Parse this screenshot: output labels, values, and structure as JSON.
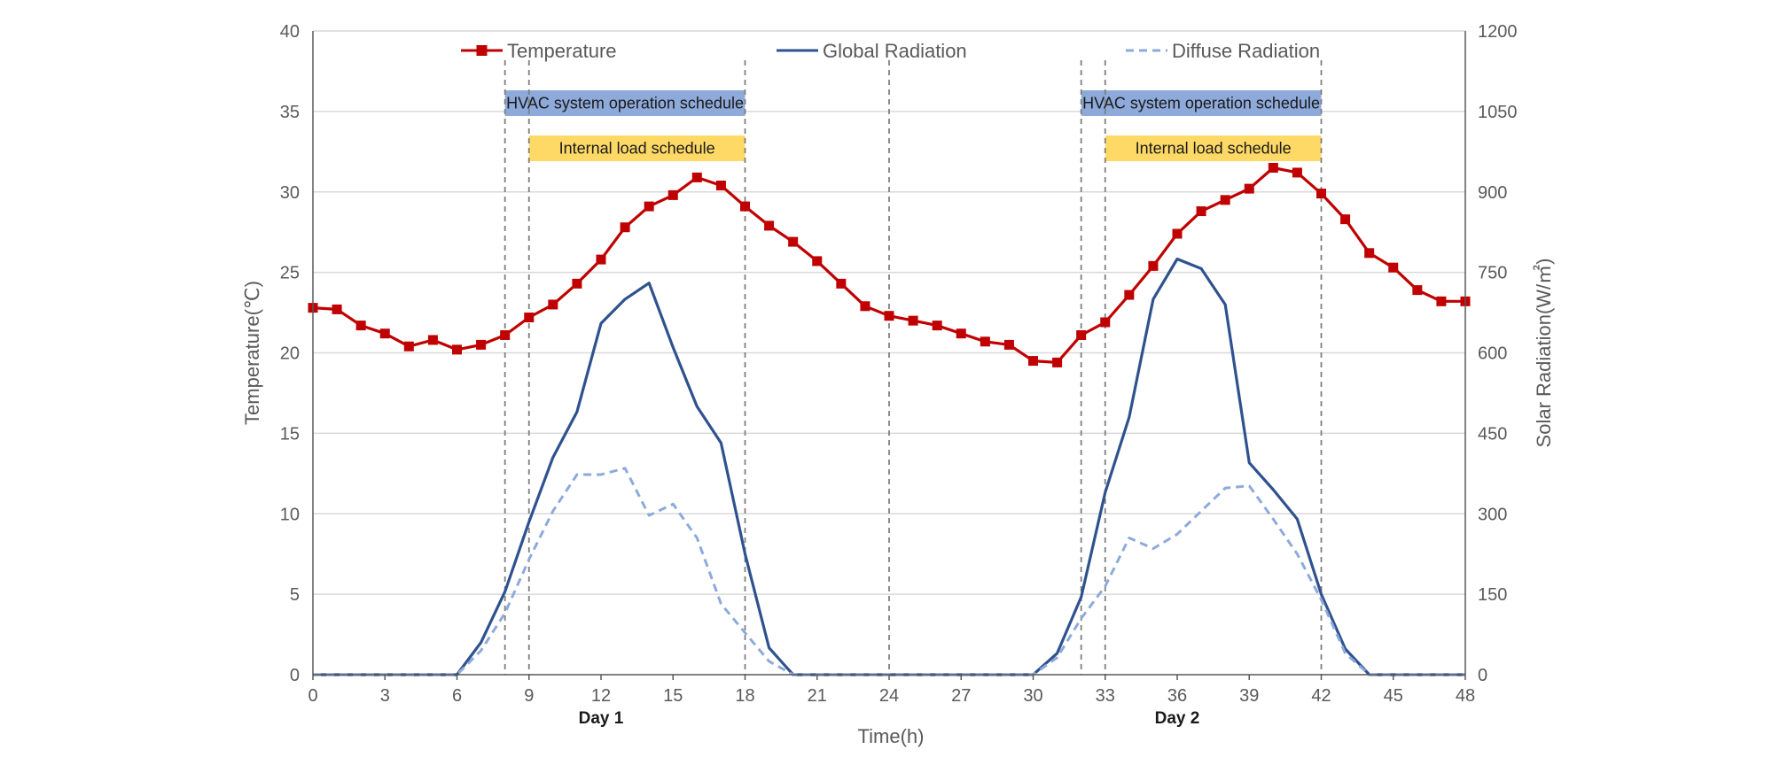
{
  "chart_data": {
    "type": "line",
    "xlabel": "Time(h)",
    "ylabel_left": "Temperature(℃)",
    "ylabel_right": "Solar Radiation(W/㎡)",
    "xlim": [
      0,
      48
    ],
    "ylim_left": [
      0,
      40
    ],
    "ylim_right": [
      0,
      1200
    ],
    "x_ticks": [
      0,
      3,
      6,
      9,
      12,
      15,
      18,
      21,
      24,
      27,
      30,
      33,
      36,
      39,
      42,
      45,
      48
    ],
    "y_ticks_left": [
      0,
      5,
      10,
      15,
      20,
      25,
      30,
      35,
      40
    ],
    "y_ticks_right": [
      0,
      150,
      300,
      450,
      600,
      750,
      900,
      1050,
      1200
    ],
    "grid": "horizontal",
    "legend_position": "top",
    "x": [
      0,
      1,
      2,
      3,
      4,
      5,
      6,
      7,
      8,
      9,
      10,
      11,
      12,
      13,
      14,
      15,
      16,
      17,
      18,
      19,
      20,
      21,
      22,
      23,
      24,
      25,
      26,
      27,
      28,
      29,
      30,
      31,
      32,
      33,
      34,
      35,
      36,
      37,
      38,
      39,
      40,
      41,
      42,
      43,
      44,
      45,
      46,
      47,
      48
    ],
    "series": [
      {
        "name": "Temperature",
        "axis": "left",
        "color": "#c00000",
        "marker": "square",
        "values": [
          22.8,
          22.7,
          21.7,
          21.2,
          20.4,
          20.8,
          20.2,
          20.5,
          21.1,
          22.2,
          23.0,
          24.3,
          25.8,
          27.8,
          29.1,
          29.8,
          30.9,
          30.4,
          29.1,
          27.9,
          26.9,
          25.7,
          24.3,
          22.9,
          22.3,
          22.0,
          21.7,
          21.2,
          20.7,
          20.5,
          19.5,
          19.4,
          21.1,
          21.9,
          23.6,
          25.4,
          27.4,
          28.8,
          29.5,
          30.2,
          31.5,
          31.2,
          29.9,
          28.3,
          26.2,
          25.3,
          23.9,
          23.2,
          23.2
        ]
      },
      {
        "name": "Global Radiation",
        "axis": "right",
        "color": "#2f528f",
        "values": [
          0,
          0,
          0,
          0,
          0,
          0,
          0,
          60,
          155,
          285,
          405,
          490,
          655,
          700,
          730,
          610,
          500,
          432,
          225,
          50,
          0,
          0,
          0,
          0,
          0,
          0,
          0,
          0,
          0,
          0,
          0,
          40,
          145,
          340,
          480,
          700,
          775,
          757,
          690,
          395,
          345,
          290,
          150,
          48,
          0,
          0,
          0,
          0,
          0
        ]
      },
      {
        "name": "Diffuse Radiation",
        "axis": "right",
        "color": "#8eaadb",
        "dash": "dashed",
        "values": [
          0,
          0,
          0,
          0,
          0,
          0,
          0,
          45,
          115,
          215,
          305,
          373,
          373,
          385,
          297,
          318,
          255,
          132,
          78,
          25,
          0,
          0,
          0,
          0,
          0,
          0,
          0,
          0,
          0,
          0,
          0,
          32,
          105,
          165,
          255,
          235,
          262,
          305,
          348,
          352,
          290,
          225,
          140,
          40,
          0,
          0,
          0,
          0,
          0
        ]
      }
    ],
    "schedules": [
      {
        "label": "HVAC system operation schedule",
        "start": 8,
        "end": 18,
        "row": 1,
        "color": "#8eaadb"
      },
      {
        "label": "Internal load schedule",
        "start": 9,
        "end": 18,
        "row": 2,
        "color": "#ffd966"
      },
      {
        "label": "HVAC system operation schedule",
        "start": 32,
        "end": 42,
        "row": 1,
        "color": "#8eaadb"
      },
      {
        "label": "Internal load schedule",
        "start": 33,
        "end": 42,
        "row": 2,
        "color": "#ffd966"
      }
    ],
    "vlines": [
      8,
      9,
      18,
      24,
      32,
      33,
      42
    ],
    "day_labels": [
      {
        "text": "Day 1",
        "x": 12
      },
      {
        "text": "Day 2",
        "x": 36
      }
    ]
  }
}
